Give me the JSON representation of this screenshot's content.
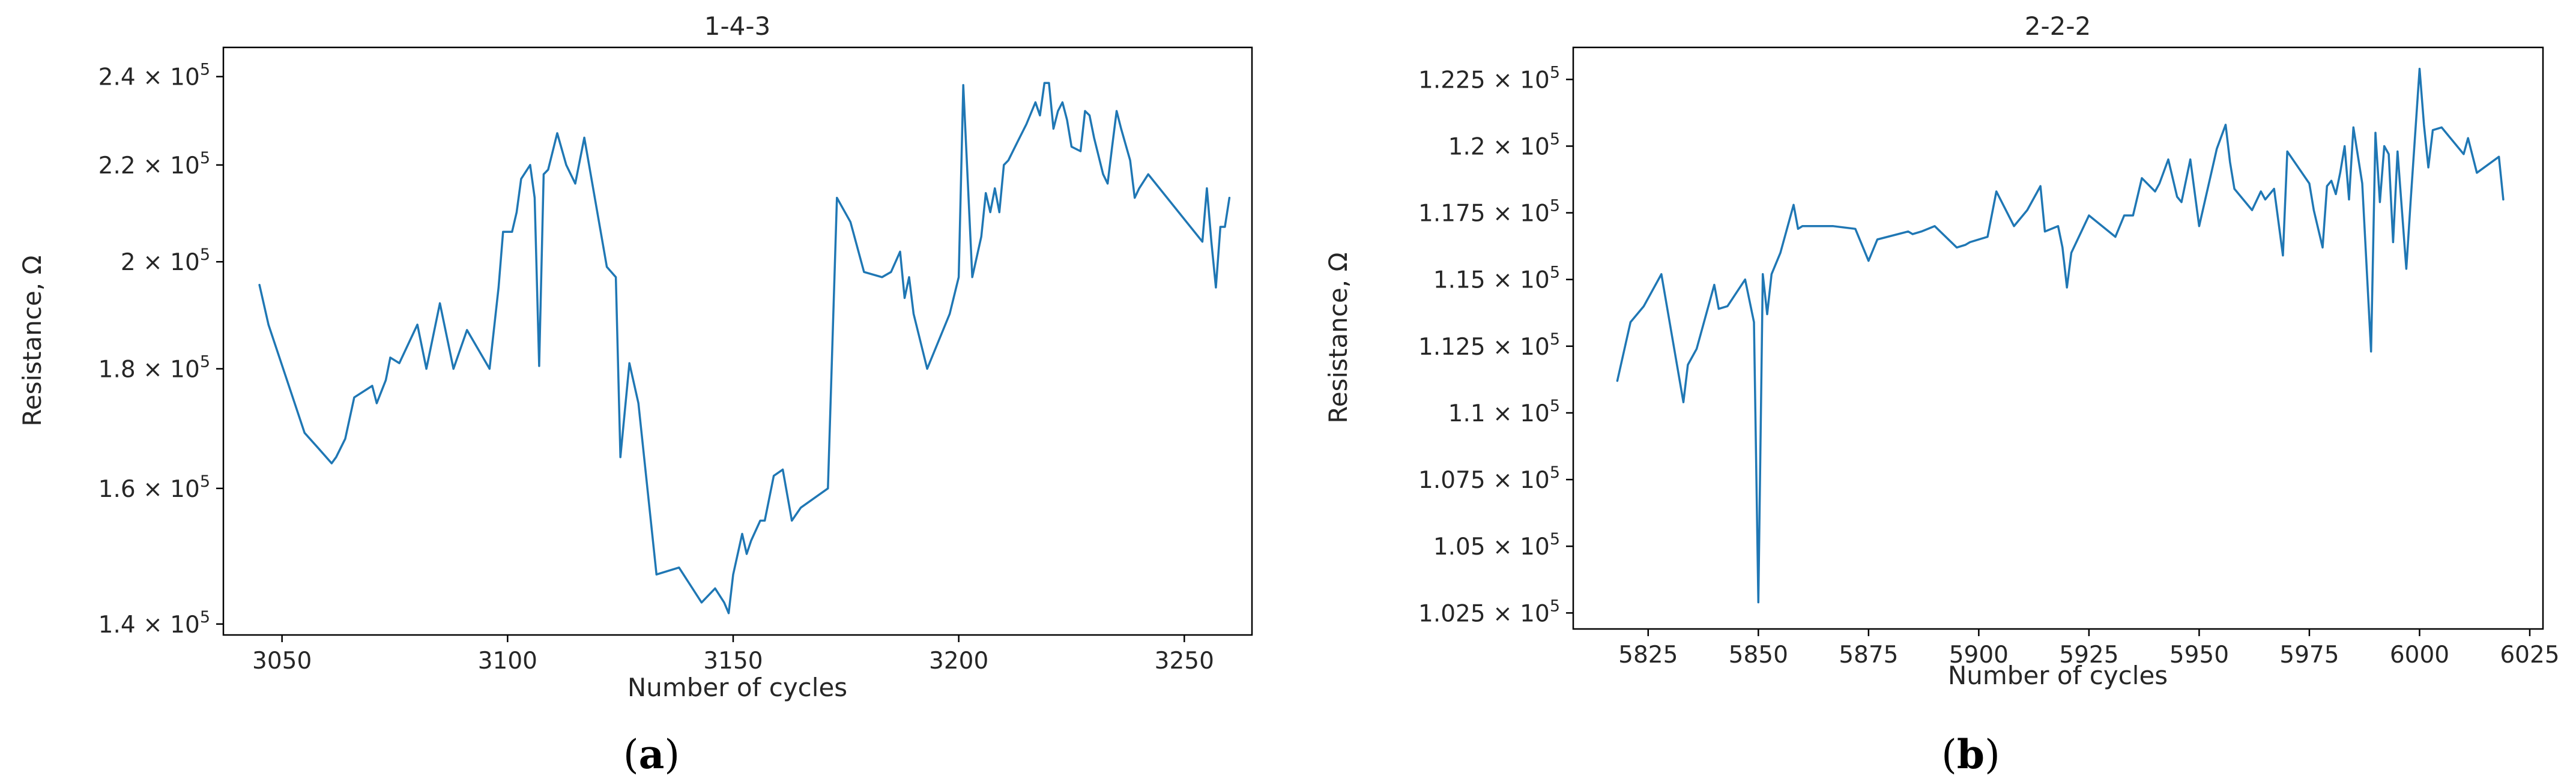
{
  "colors": {
    "series": "#1f77b4"
  },
  "captions": [
    {
      "open": "(",
      "letter": "a",
      "close": ")"
    },
    {
      "open": "(",
      "letter": "b",
      "close": ")"
    }
  ],
  "chart_data": [
    {
      "type": "line",
      "title": "1-4-3",
      "xlabel": "Number of cycles",
      "ylabel": "Resistance, Ω",
      "xlim": [
        3037,
        3265
      ],
      "ylim": [
        138500,
        247000
      ],
      "yscale": "log",
      "grid": false,
      "xticks": [
        3050,
        3100,
        3150,
        3200,
        3250
      ],
      "yticks": [
        {
          "value": 140000,
          "mantissa": "1.4",
          "base": "10",
          "exp": "5"
        },
        {
          "value": 160000,
          "mantissa": "1.6",
          "base": "10",
          "exp": "5"
        },
        {
          "value": 180000,
          "mantissa": "1.8",
          "base": "10",
          "exp": "5"
        },
        {
          "value": 200000,
          "mantissa": "2",
          "base": "10",
          "exp": "5"
        },
        {
          "value": 220000,
          "mantissa": "2.2",
          "base": "10",
          "exp": "5"
        },
        {
          "value": 240000,
          "mantissa": "2.4",
          "base": "10",
          "exp": "5"
        }
      ],
      "series": [
        {
          "x": [
            3045,
            3047,
            3055,
            3058,
            3061,
            3062,
            3064,
            3066,
            3070,
            3071,
            3073,
            3074,
            3076,
            3080,
            3082,
            3085,
            3088,
            3091,
            3096,
            3098,
            3099,
            3101,
            3102,
            3103,
            3105,
            3106,
            3107,
            3108,
            3109,
            3111,
            3113,
            3115,
            3117,
            3122,
            3124,
            3125,
            3127,
            3129,
            3133,
            3138,
            3143,
            3146,
            3148,
            3149,
            3150,
            3152,
            3153,
            3154,
            3156,
            3157,
            3159,
            3161,
            3163,
            3165,
            3171,
            3173,
            3176,
            3179,
            3183,
            3185,
            3187,
            3188,
            3189,
            3190,
            3193,
            3198,
            3200,
            3201,
            3203,
            3205,
            3206,
            3207,
            3208,
            3209,
            3210,
            3211,
            3212,
            3213,
            3215,
            3217,
            3218,
            3219,
            3220,
            3221,
            3222,
            3223,
            3224,
            3225,
            3227,
            3228,
            3229,
            3230,
            3232,
            3233,
            3234,
            3235,
            3236,
            3238,
            3239,
            3240,
            3242,
            3254,
            3255,
            3256,
            3257,
            3258,
            3259,
            3260
          ],
          "y": [
            195500,
            188000,
            169000,
            166500,
            164000,
            165000,
            168000,
            175000,
            177000,
            174000,
            178000,
            182000,
            181000,
            188000,
            180000,
            192000,
            180000,
            187000,
            180000,
            195000,
            206000,
            206000,
            210000,
            217000,
            220000,
            213000,
            180500,
            218000,
            219000,
            227000,
            220000,
            216000,
            226000,
            199000,
            197000,
            165000,
            181000,
            174000,
            147000,
            148000,
            143000,
            145000,
            143000,
            141500,
            147000,
            153000,
            150000,
            152000,
            155000,
            155000,
            162000,
            163000,
            155000,
            157000,
            160000,
            213000,
            208000,
            198000,
            197000,
            198000,
            202000,
            193000,
            197000,
            190000,
            180000,
            190000,
            197000,
            238000,
            197000,
            205000,
            214000,
            210000,
            215000,
            210000,
            220000,
            221000,
            223000,
            225000,
            229000,
            234000,
            231000,
            238500,
            238500,
            228000,
            232000,
            234000,
            230000,
            224000,
            223000,
            232000,
            231000,
            226000,
            218000,
            216000,
            224000,
            232000,
            228000,
            221000,
            213000,
            215000,
            218000,
            204000,
            215000,
            204000,
            195000,
            207000,
            207000,
            213000
          ]
        }
      ]
    },
    {
      "type": "line",
      "title": "2-2-2",
      "xlabel": "Number of cycles",
      "ylabel": "Resistance, Ω",
      "xlim": [
        5808,
        6028
      ],
      "ylim": [
        101900,
        123700
      ],
      "yscale": "linear",
      "grid": false,
      "xticks": [
        5825,
        5850,
        5875,
        5900,
        5925,
        5950,
        5975,
        6000,
        6025
      ],
      "yticks": [
        {
          "value": 102500,
          "mantissa": "1.025",
          "base": "10",
          "exp": "5"
        },
        {
          "value": 105000,
          "mantissa": "1.05",
          "base": "10",
          "exp": "5"
        },
        {
          "value": 107500,
          "mantissa": "1.075",
          "base": "10",
          "exp": "5"
        },
        {
          "value": 110000,
          "mantissa": "1.1",
          "base": "10",
          "exp": "5"
        },
        {
          "value": 112500,
          "mantissa": "1.125",
          "base": "10",
          "exp": "5"
        },
        {
          "value": 115000,
          "mantissa": "1.15",
          "base": "10",
          "exp": "5"
        },
        {
          "value": 117500,
          "mantissa": "1.175",
          "base": "10",
          "exp": "5"
        },
        {
          "value": 120000,
          "mantissa": "1.2",
          "base": "10",
          "exp": "5"
        },
        {
          "value": 122500,
          "mantissa": "1.225",
          "base": "10",
          "exp": "5"
        }
      ],
      "series": [
        {
          "x": [
            5818,
            5821,
            5824,
            5828,
            5833,
            5834,
            5836,
            5840,
            5841,
            5843,
            5847,
            5849,
            5850,
            5851,
            5852,
            5853,
            5855,
            5858,
            5859,
            5860,
            5867,
            5872,
            5875,
            5877,
            5884,
            5885,
            5887,
            5890,
            5895,
            5897,
            5898,
            5902,
            5904,
            5908,
            5911,
            5914,
            5915,
            5918,
            5919,
            5920,
            5921,
            5925,
            5931,
            5933,
            5935,
            5937,
            5940,
            5941,
            5943,
            5945,
            5946,
            5948,
            5950,
            5954,
            5956,
            5957,
            5958,
            5962,
            5964,
            5965,
            5967,
            5969,
            5970,
            5975,
            5976,
            5978,
            5979,
            5980,
            5981,
            5982,
            5983,
            5984,
            5985,
            5987,
            5989,
            5990,
            5991,
            5992,
            5993,
            5994,
            5995,
            5997,
            5998,
            6000,
            6001,
            6002,
            6003,
            6005,
            6010,
            6011,
            6013,
            6018,
            6019
          ],
          "y": [
            111200,
            113400,
            114000,
            115200,
            110400,
            111800,
            112400,
            114800,
            113900,
            114000,
            115000,
            113400,
            102900,
            115200,
            113700,
            115200,
            116000,
            117800,
            116900,
            117000,
            117000,
            116900,
            115700,
            116500,
            116800,
            116700,
            116800,
            117000,
            116200,
            116300,
            116400,
            116600,
            118300,
            117000,
            117600,
            118500,
            116800,
            117000,
            116200,
            114700,
            116000,
            117400,
            116600,
            117400,
            117400,
            118800,
            118300,
            118600,
            119500,
            118100,
            117900,
            119500,
            117000,
            119900,
            120800,
            119400,
            118400,
            117600,
            118300,
            118000,
            118400,
            115900,
            119800,
            118600,
            117600,
            116200,
            118500,
            118700,
            118200,
            119000,
            120000,
            118000,
            120700,
            118600,
            112300,
            120500,
            117900,
            120000,
            119700,
            116400,
            119800,
            115400,
            118000,
            122900,
            120800,
            119200,
            120600,
            120700,
            119700,
            120300,
            119000,
            119600,
            118000
          ]
        }
      ]
    }
  ]
}
